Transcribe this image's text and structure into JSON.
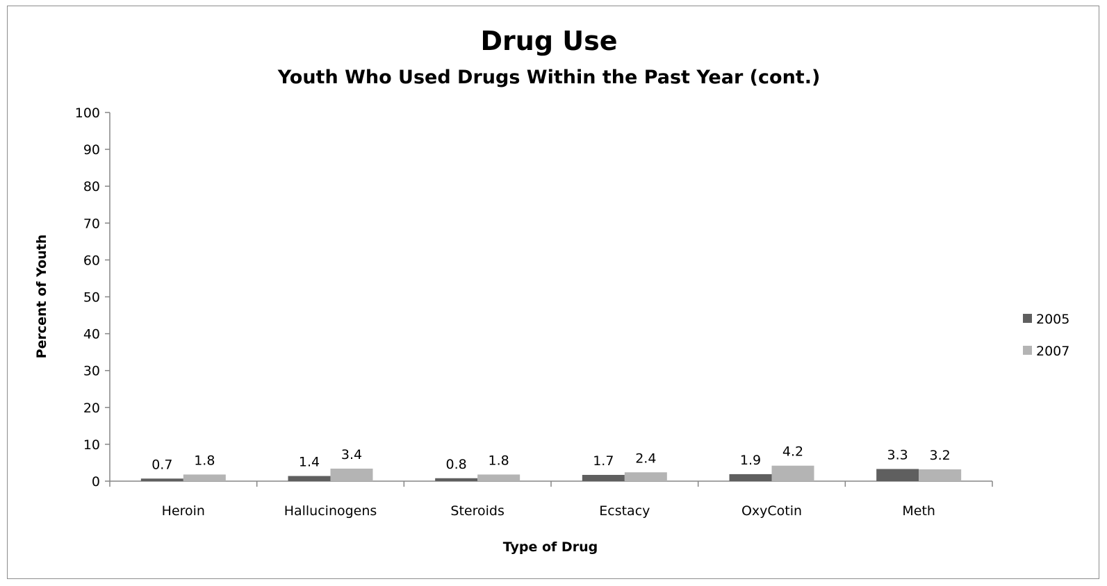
{
  "chart_data": {
    "type": "bar",
    "title": "Drug Use",
    "subtitle": "Youth Who Used Drugs Within the Past Year (cont.)",
    "xlabel": "Type of Drug",
    "ylabel": "Percent of Youth",
    "ylim": [
      0,
      100
    ],
    "yticks": [
      0,
      10,
      20,
      30,
      40,
      50,
      60,
      70,
      80,
      90,
      100
    ],
    "categories": [
      "Heroin",
      "Hallucinogens",
      "Steroids",
      "Ecstacy",
      "OxyCotin",
      "Meth"
    ],
    "series": [
      {
        "name": "2005",
        "values": [
          0.7,
          1.4,
          0.8,
          1.7,
          1.9,
          3.3
        ],
        "color": "#5f5f5f"
      },
      {
        "name": "2007",
        "values": [
          1.8,
          3.4,
          1.8,
          2.4,
          4.2,
          3.2
        ],
        "color": "#b4b4b4"
      }
    ],
    "legend_position": "right",
    "grid": false
  }
}
